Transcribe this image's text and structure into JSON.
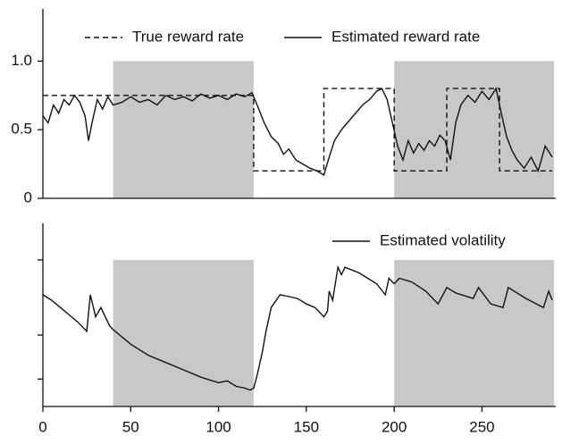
{
  "chart_data": [
    {
      "type": "line",
      "xlim": [
        0,
        292
      ],
      "ylim": [
        0,
        1.38
      ],
      "yticks": [
        0,
        0.5,
        {
          "value": 1,
          "label": "1.0"
        }
      ],
      "shaded_regions": [
        {
          "x": [
            40,
            120
          ],
          "y": [
            0,
            1
          ],
          "color": "#c8c8c8"
        },
        {
          "x": [
            200,
            291
          ],
          "y": [
            0,
            1
          ],
          "color": "#c8c8c8"
        }
      ],
      "series": [
        {
          "name": "True reward rate",
          "color": "#111111",
          "style": "dashed",
          "x": [
            0,
            120,
            120,
            160,
            160,
            200,
            200,
            230,
            230,
            260,
            260,
            290
          ],
          "values": [
            0.75,
            0.75,
            0.2,
            0.2,
            0.8,
            0.8,
            0.2,
            0.2,
            0.8,
            0.8,
            0.2,
            0.2
          ]
        },
        {
          "name": "Estimated reward rate",
          "color": "#111111",
          "style": "solid",
          "x": [
            0,
            3,
            6,
            9,
            12,
            15,
            18,
            21,
            24,
            26,
            28,
            31,
            34,
            37,
            40,
            45,
            50,
            55,
            60,
            65,
            70,
            75,
            80,
            85,
            90,
            95,
            100,
            105,
            110,
            115,
            119,
            122,
            126,
            130,
            134,
            137,
            140,
            144,
            148,
            152,
            156,
            160,
            163,
            166,
            170,
            174,
            178,
            182,
            186,
            190,
            193,
            196,
            199,
            202,
            205,
            208,
            211,
            214,
            217,
            220,
            223,
            226,
            229,
            232,
            235,
            238,
            242,
            246,
            250,
            254,
            258,
            261,
            264,
            267,
            270,
            274,
            278,
            282,
            286,
            290
          ],
          "values": [
            0.6,
            0.55,
            0.68,
            0.62,
            0.72,
            0.68,
            0.75,
            0.7,
            0.6,
            0.42,
            0.55,
            0.72,
            0.65,
            0.74,
            0.68,
            0.7,
            0.74,
            0.7,
            0.72,
            0.68,
            0.75,
            0.72,
            0.74,
            0.71,
            0.76,
            0.73,
            0.75,
            0.72,
            0.76,
            0.74,
            0.77,
            0.68,
            0.55,
            0.45,
            0.4,
            0.32,
            0.36,
            0.28,
            0.25,
            0.22,
            0.2,
            0.17,
            0.3,
            0.42,
            0.5,
            0.56,
            0.62,
            0.68,
            0.72,
            0.78,
            0.8,
            0.72,
            0.55,
            0.38,
            0.28,
            0.42,
            0.33,
            0.4,
            0.35,
            0.42,
            0.38,
            0.46,
            0.42,
            0.28,
            0.55,
            0.68,
            0.75,
            0.7,
            0.78,
            0.72,
            0.8,
            0.62,
            0.45,
            0.35,
            0.28,
            0.22,
            0.3,
            0.2,
            0.38,
            0.3
          ]
        }
      ]
    },
    {
      "type": "line",
      "xlim": [
        0,
        292
      ],
      "xticks": [
        0,
        50,
        100,
        150,
        200,
        250
      ],
      "ylim": [
        0,
        1
      ],
      "yticks": [
        0.15,
        0.39,
        0.8
      ],
      "shaded_regions": [
        {
          "x": [
            40,
            120
          ],
          "y": [
            0,
            0.8
          ],
          "color": "#c8c8c8"
        },
        {
          "x": [
            200,
            291
          ],
          "y": [
            0,
            0.8
          ],
          "color": "#c8c8c8"
        }
      ],
      "series": [
        {
          "name": "Estimated volatility",
          "color": "#111111",
          "style": "solid",
          "x": [
            0,
            5,
            10,
            15,
            20,
            25,
            27,
            30,
            33,
            38,
            40,
            50,
            60,
            70,
            80,
            90,
            100,
            105,
            110,
            115,
            118,
            120,
            122,
            125,
            127,
            130,
            135,
            140,
            145,
            150,
            155,
            160,
            162,
            163,
            165,
            168,
            170,
            172,
            180,
            190,
            195,
            197,
            200,
            203,
            210,
            218,
            225,
            230,
            235,
            245,
            248,
            255,
            262,
            265,
            275,
            285,
            288,
            290
          ],
          "values": [
            0.61,
            0.58,
            0.54,
            0.5,
            0.46,
            0.41,
            0.61,
            0.49,
            0.54,
            0.44,
            0.42,
            0.34,
            0.28,
            0.24,
            0.2,
            0.16,
            0.13,
            0.14,
            0.11,
            0.1,
            0.09,
            0.1,
            0.17,
            0.3,
            0.41,
            0.54,
            0.61,
            0.6,
            0.59,
            0.56,
            0.54,
            0.49,
            0.52,
            0.63,
            0.58,
            0.76,
            0.72,
            0.76,
            0.73,
            0.67,
            0.61,
            0.7,
            0.67,
            0.7,
            0.68,
            0.63,
            0.56,
            0.65,
            0.62,
            0.59,
            0.65,
            0.56,
            0.54,
            0.65,
            0.59,
            0.54,
            0.63,
            0.58
          ]
        }
      ]
    }
  ]
}
